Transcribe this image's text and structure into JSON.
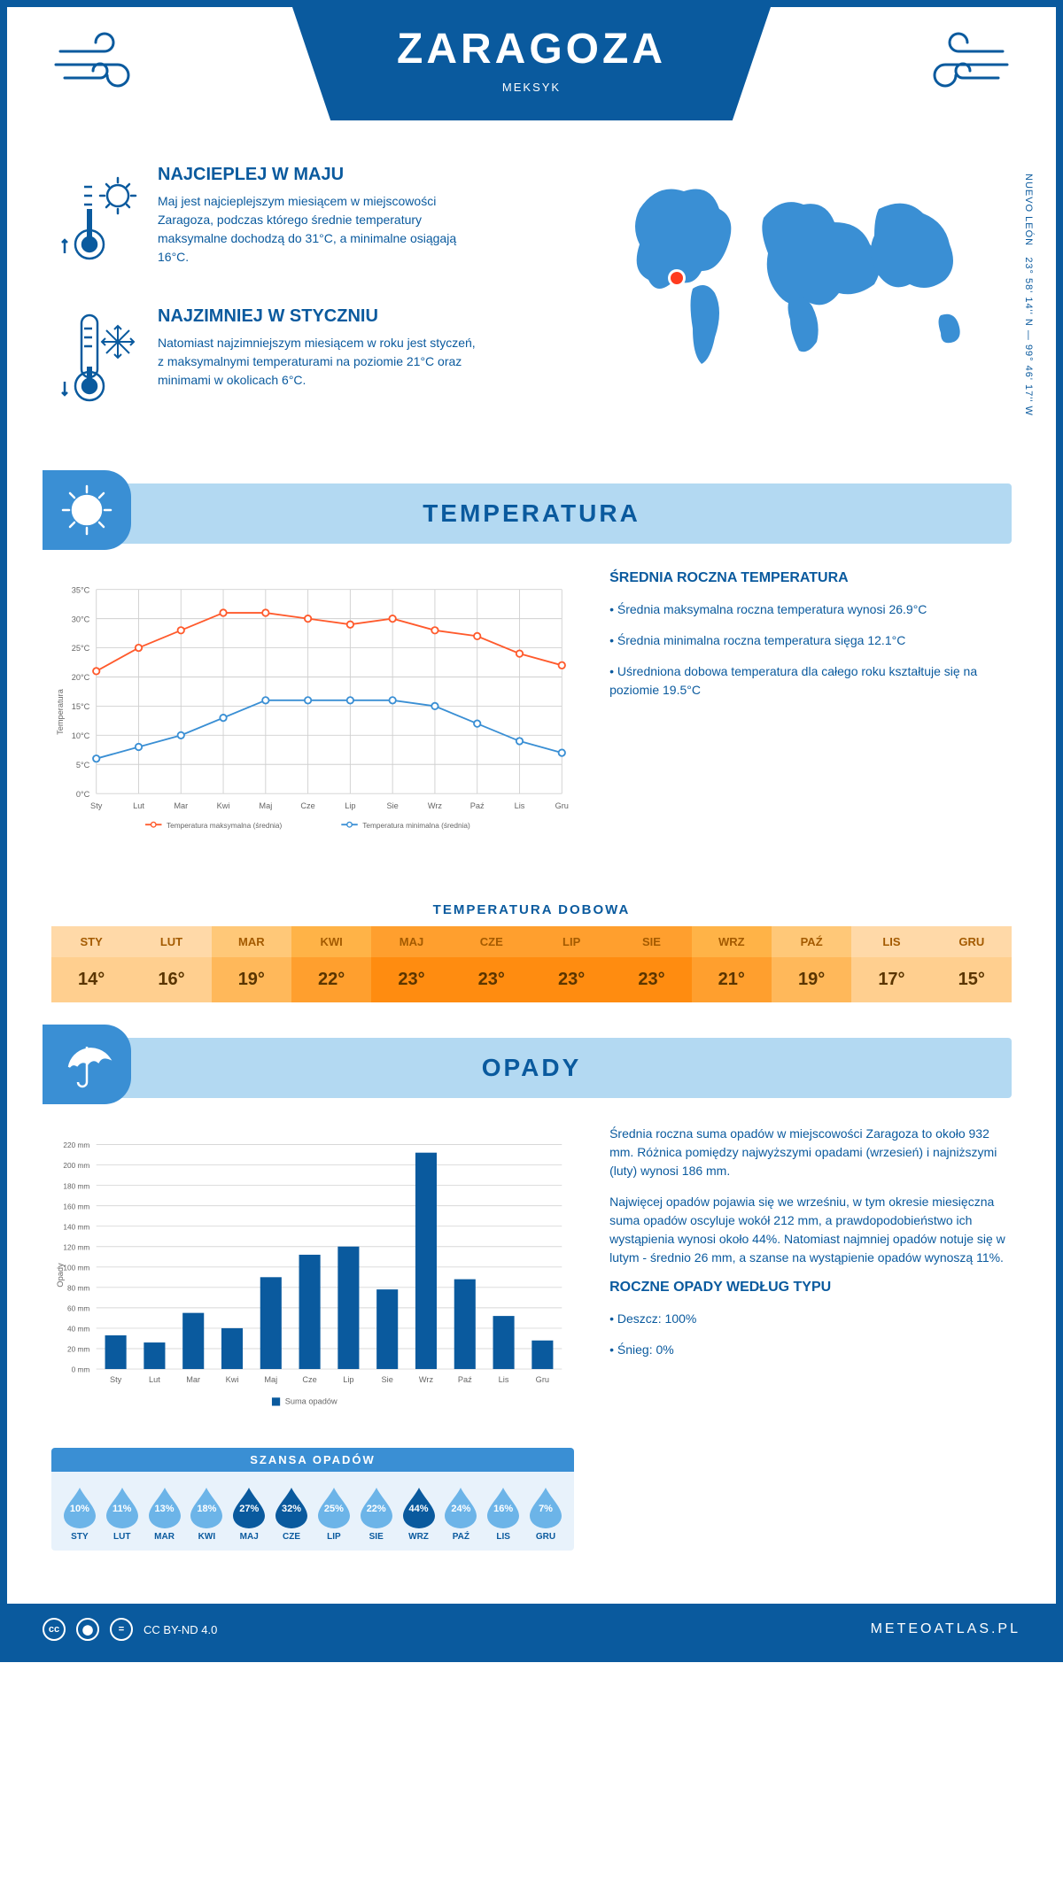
{
  "header": {
    "city": "ZARAGOZA",
    "country": "MEKSYK"
  },
  "coords": {
    "region": "NUEVO LEÓN",
    "lat": "23° 58' 14'' N — 99° 46' 17'' W"
  },
  "warm": {
    "title": "NAJCIEPLEJ W MAJU",
    "text": "Maj jest najcieplejszym miesiącem w miejscowości Zaragoza, podczas którego średnie temperatury maksymalne dochodzą do 31°C, a minimalne osiągają 16°C."
  },
  "cold": {
    "title": "NAJZIMNIEJ W STYCZNIU",
    "text": "Natomiast najzimniejszym miesiącem w roku jest styczeń, z maksymalnymi temperaturami na poziomie 21°C oraz minimami w okolicach 6°C."
  },
  "sections": {
    "temp": "TEMPERATURA",
    "precip": "OPADY"
  },
  "temp_chart": {
    "months": [
      "Sty",
      "Lut",
      "Mar",
      "Kwi",
      "Maj",
      "Cze",
      "Lip",
      "Sie",
      "Wrz",
      "Paź",
      "Lis",
      "Gru"
    ],
    "max": [
      21,
      25,
      28,
      31,
      31,
      30,
      29,
      30,
      28,
      27,
      24,
      22
    ],
    "min": [
      6,
      8,
      10,
      13,
      16,
      16,
      16,
      16,
      15,
      12,
      9,
      7
    ],
    "ylabel": "Temperatura",
    "ylim": [
      0,
      35
    ],
    "ytick": 5,
    "max_color": "#ff5a2c",
    "min_color": "#3a8fd4",
    "grid_color": "#d0d0d0",
    "legend_max": "Temperatura maksymalna (średnia)",
    "legend_min": "Temperatura minimalna (średnia)"
  },
  "temp_info": {
    "title": "ŚREDNIA ROCZNA TEMPERATURA",
    "p1": "• Średnia maksymalna roczna temperatura wynosi 26.9°C",
    "p2": "• Średnia minimalna roczna temperatura sięga 12.1°C",
    "p3": "• Uśredniona dobowa temperatura dla całego roku kształtuje się na poziomie 19.5°C"
  },
  "daily": {
    "title": "TEMPERATURA DOBOWA",
    "months": [
      "STY",
      "LUT",
      "MAR",
      "KWI",
      "MAJ",
      "CZE",
      "LIP",
      "SIE",
      "WRZ",
      "PAŹ",
      "LIS",
      "GRU"
    ],
    "values": [
      "14°",
      "16°",
      "19°",
      "22°",
      "23°",
      "23°",
      "23°",
      "23°",
      "21°",
      "19°",
      "17°",
      "15°"
    ],
    "range": [
      14,
      23
    ],
    "head_colors": [
      "#ffd9a8",
      "#ffd9a8",
      "#ffc878",
      "#ffb347",
      "#ff9f2e",
      "#ff9f2e",
      "#ff9f2e",
      "#ff9f2e",
      "#ffb347",
      "#ffc878",
      "#ffd9a8",
      "#ffd9a8"
    ],
    "val_colors": [
      "#ffcf8f",
      "#ffcf8f",
      "#ffb85a",
      "#ff9f2e",
      "#ff8c10",
      "#ff8c10",
      "#ff8c10",
      "#ff8c10",
      "#ff9f2e",
      "#ffb85a",
      "#ffcf8f",
      "#ffcf8f"
    ]
  },
  "precip_chart": {
    "months": [
      "Sty",
      "Lut",
      "Mar",
      "Kwi",
      "Maj",
      "Cze",
      "Lip",
      "Sie",
      "Wrz",
      "Paź",
      "Lis",
      "Gru"
    ],
    "values": [
      33,
      26,
      55,
      40,
      90,
      112,
      120,
      78,
      212,
      88,
      52,
      28
    ],
    "ylabel": "Opady",
    "ylim": [
      0,
      220
    ],
    "ytick": 20,
    "bar_color": "#0a5a9e",
    "grid_color": "#d8d8d8",
    "legend": "Suma opadów"
  },
  "precip_info": {
    "p1": "Średnia roczna suma opadów w miejscowości Zaragoza to około 932 mm. Różnica pomiędzy najwyższymi opadami (wrzesień) i najniższymi (luty) wynosi 186 mm.",
    "p2": "Najwięcej opadów pojawia się we wrześniu, w tym okresie miesięczna suma opadów oscyluje wokół 212 mm, a prawdopodobieństwo ich wystąpienia wynosi około 44%. Natomiast najmniej opadów notuje się w lutym - średnio 26 mm, a szanse na wystąpienie opadów wynoszą 11%.",
    "type_title": "ROCZNE OPADY WEDŁUG TYPU",
    "rain": "• Deszcz: 100%",
    "snow": "• Śnieg: 0%"
  },
  "chance": {
    "title": "SZANSA OPADÓW",
    "months": [
      "STY",
      "LUT",
      "MAR",
      "KWI",
      "MAJ",
      "CZE",
      "LIP",
      "SIE",
      "WRZ",
      "PAŹ",
      "LIS",
      "GRU"
    ],
    "values": [
      "10%",
      "11%",
      "13%",
      "18%",
      "27%",
      "32%",
      "25%",
      "22%",
      "44%",
      "24%",
      "16%",
      "7%"
    ],
    "nums": [
      10,
      11,
      13,
      18,
      27,
      32,
      25,
      22,
      44,
      24,
      16,
      7
    ],
    "light_color": "#6cb4e8",
    "dark_color": "#0a5a9e"
  },
  "footer": {
    "license": "CC BY-ND 4.0",
    "brand": "METEOATLAS.PL"
  }
}
